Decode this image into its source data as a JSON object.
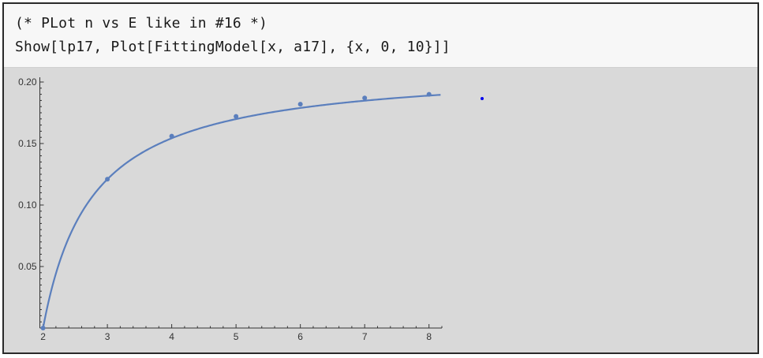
{
  "input_cell": {
    "line1": "(* PLot n vs E like in #16 *)",
    "line2": "Show[lp17, Plot[FittingModel[x, a17], {x, 0, 10}]]"
  },
  "colors": {
    "curve": "#5b7fbd",
    "points": "#5b7fbd",
    "axis": "#333333",
    "stray_dot": "#0000ee"
  },
  "chart_data": {
    "type": "scatter",
    "x_ticks": [
      "2",
      "3",
      "4",
      "5",
      "6",
      "7",
      "8"
    ],
    "y_ticks": [
      "0.05",
      "0.10",
      "0.15",
      "0.20"
    ],
    "xlim": [
      1.95,
      8.2
    ],
    "ylim": [
      0,
      0.2
    ],
    "points": [
      {
        "x": 2,
        "y": 0.0
      },
      {
        "x": 3,
        "y": 0.121
      },
      {
        "x": 4,
        "y": 0.156
      },
      {
        "x": 5,
        "y": 0.172
      },
      {
        "x": 6,
        "y": 0.182
      },
      {
        "x": 7,
        "y": 0.187
      },
      {
        "x": 8,
        "y": 0.19
      }
    ],
    "fit_curve": {
      "description": "fitted model curve",
      "x_range": [
        2,
        8.18
      ]
    },
    "grid": false
  }
}
